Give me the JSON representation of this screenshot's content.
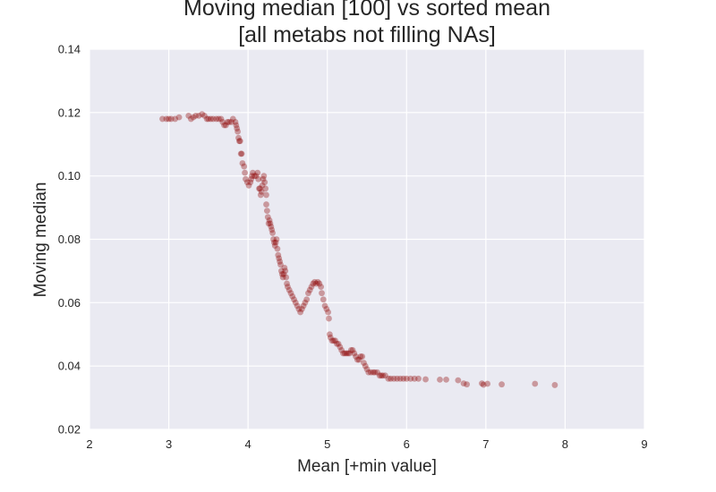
{
  "chart_data": {
    "type": "scatter",
    "title_lines": [
      "Moving median [100] vs sorted mean",
      "[all metabs not filling NAs]"
    ],
    "xlabel": "Mean [+min value]",
    "ylabel": "Moving median",
    "xlim": [
      2,
      9
    ],
    "ylim": [
      0.02,
      0.14
    ],
    "x_ticks": [
      2,
      3,
      4,
      5,
      6,
      7,
      8,
      9
    ],
    "y_ticks": [
      0.02,
      0.04,
      0.06,
      0.08,
      0.1,
      0.12,
      0.14
    ],
    "x_tick_labels": [
      "2",
      "3",
      "4",
      "5",
      "6",
      "7",
      "8",
      "9"
    ],
    "y_tick_labels": [
      "0.02",
      "0.04",
      "0.06",
      "0.08",
      "0.10",
      "0.12",
      "0.14"
    ],
    "grid": true,
    "background_color": "#eaeaf2",
    "grid_color": "#ffffff",
    "point_color": "#8b0000",
    "point_alpha": 0.35,
    "series": [
      {
        "points": [
          [
            2.92,
            0.118
          ],
          [
            2.97,
            0.118
          ],
          [
            3.0,
            0.118
          ],
          [
            3.03,
            0.118
          ],
          [
            3.08,
            0.118
          ],
          [
            3.13,
            0.1185
          ],
          [
            3.25,
            0.119
          ],
          [
            3.28,
            0.118
          ],
          [
            3.31,
            0.1185
          ],
          [
            3.34,
            0.119
          ],
          [
            3.38,
            0.119
          ],
          [
            3.42,
            0.1195
          ],
          [
            3.45,
            0.119
          ],
          [
            3.48,
            0.118
          ],
          [
            3.5,
            0.118
          ],
          [
            3.53,
            0.118
          ],
          [
            3.56,
            0.118
          ],
          [
            3.6,
            0.118
          ],
          [
            3.63,
            0.118
          ],
          [
            3.66,
            0.118
          ],
          [
            3.68,
            0.117
          ],
          [
            3.7,
            0.116
          ],
          [
            3.72,
            0.116
          ],
          [
            3.74,
            0.117
          ],
          [
            3.76,
            0.117
          ],
          [
            3.79,
            0.117
          ],
          [
            3.81,
            0.118
          ],
          [
            3.84,
            0.117
          ],
          [
            3.85,
            0.116
          ],
          [
            3.86,
            0.115
          ],
          [
            3.87,
            0.114
          ],
          [
            3.88,
            0.112
          ],
          [
            3.89,
            0.111
          ],
          [
            3.9,
            0.111
          ],
          [
            3.91,
            0.107
          ],
          [
            3.92,
            0.107
          ],
          [
            3.93,
            0.104
          ],
          [
            3.95,
            0.103
          ],
          [
            3.96,
            0.101
          ],
          [
            3.97,
            0.099
          ],
          [
            3.99,
            0.098
          ],
          [
            4.01,
            0.097
          ],
          [
            4.03,
            0.098
          ],
          [
            4.04,
            0.099
          ],
          [
            4.05,
            0.1
          ],
          [
            4.06,
            0.101
          ],
          [
            4.08,
            0.1
          ],
          [
            4.1,
            0.1
          ],
          [
            4.12,
            0.101
          ],
          [
            4.13,
            0.099
          ],
          [
            4.14,
            0.096
          ],
          [
            4.15,
            0.096
          ],
          [
            4.16,
            0.094
          ],
          [
            4.17,
            0.095
          ],
          [
            4.18,
            0.097
          ],
          [
            4.19,
            0.099
          ],
          [
            4.2,
            0.1
          ],
          [
            4.21,
            0.098
          ],
          [
            4.22,
            0.096
          ],
          [
            4.23,
            0.094
          ],
          [
            4.23,
            0.091
          ],
          [
            4.24,
            0.089
          ],
          [
            4.25,
            0.087
          ],
          [
            4.26,
            0.085
          ],
          [
            4.27,
            0.086
          ],
          [
            4.28,
            0.085
          ],
          [
            4.29,
            0.084
          ],
          [
            4.3,
            0.083
          ],
          [
            4.31,
            0.082
          ],
          [
            4.32,
            0.08
          ],
          [
            4.33,
            0.079
          ],
          [
            4.34,
            0.078
          ],
          [
            4.35,
            0.079
          ],
          [
            4.36,
            0.08
          ],
          [
            4.37,
            0.077
          ],
          [
            4.38,
            0.075
          ],
          [
            4.39,
            0.074
          ],
          [
            4.4,
            0.073
          ],
          [
            4.41,
            0.072
          ],
          [
            4.42,
            0.07
          ],
          [
            4.43,
            0.069
          ],
          [
            4.44,
            0.068
          ],
          [
            4.45,
            0.069
          ],
          [
            4.46,
            0.071
          ],
          [
            4.47,
            0.07
          ],
          [
            4.48,
            0.068
          ],
          [
            4.49,
            0.066
          ],
          [
            4.5,
            0.065
          ],
          [
            4.52,
            0.064
          ],
          [
            4.54,
            0.063
          ],
          [
            4.56,
            0.062
          ],
          [
            4.58,
            0.061
          ],
          [
            4.6,
            0.06
          ],
          [
            4.62,
            0.059
          ],
          [
            4.64,
            0.058
          ],
          [
            4.66,
            0.057
          ],
          [
            4.68,
            0.058
          ],
          [
            4.7,
            0.059
          ],
          [
            4.72,
            0.06
          ],
          [
            4.74,
            0.061
          ],
          [
            4.76,
            0.063
          ],
          [
            4.78,
            0.064
          ],
          [
            4.8,
            0.065
          ],
          [
            4.82,
            0.066
          ],
          [
            4.84,
            0.0665
          ],
          [
            4.86,
            0.066
          ],
          [
            4.88,
            0.0665
          ],
          [
            4.9,
            0.066
          ],
          [
            4.92,
            0.065
          ],
          [
            4.93,
            0.063
          ],
          [
            4.95,
            0.061
          ],
          [
            4.97,
            0.059
          ],
          [
            4.99,
            0.058
          ],
          [
            5.01,
            0.057
          ],
          [
            5.02,
            0.055
          ],
          [
            5.03,
            0.05
          ],
          [
            5.04,
            0.049
          ],
          [
            5.06,
            0.048
          ],
          [
            5.08,
            0.048
          ],
          [
            5.1,
            0.048
          ],
          [
            5.12,
            0.047
          ],
          [
            5.14,
            0.047
          ],
          [
            5.16,
            0.046
          ],
          [
            5.18,
            0.045
          ],
          [
            5.2,
            0.044
          ],
          [
            5.22,
            0.044
          ],
          [
            5.24,
            0.044
          ],
          [
            5.26,
            0.044
          ],
          [
            5.28,
            0.044
          ],
          [
            5.3,
            0.045
          ],
          [
            5.32,
            0.045
          ],
          [
            5.34,
            0.044
          ],
          [
            5.36,
            0.043
          ],
          [
            5.38,
            0.042
          ],
          [
            5.4,
            0.042
          ],
          [
            5.42,
            0.043
          ],
          [
            5.44,
            0.043
          ],
          [
            5.46,
            0.041
          ],
          [
            5.48,
            0.04
          ],
          [
            5.5,
            0.039
          ],
          [
            5.52,
            0.038
          ],
          [
            5.55,
            0.038
          ],
          [
            5.58,
            0.038
          ],
          [
            5.6,
            0.038
          ],
          [
            5.63,
            0.038
          ],
          [
            5.66,
            0.037
          ],
          [
            5.68,
            0.037
          ],
          [
            5.7,
            0.037
          ],
          [
            5.73,
            0.037
          ],
          [
            5.77,
            0.036
          ],
          [
            5.8,
            0.036
          ],
          [
            5.84,
            0.036
          ],
          [
            5.88,
            0.036
          ],
          [
            5.92,
            0.036
          ],
          [
            5.96,
            0.036
          ],
          [
            6.0,
            0.036
          ],
          [
            6.05,
            0.036
          ],
          [
            6.1,
            0.036
          ],
          [
            6.15,
            0.036
          ],
          [
            6.24,
            0.0358
          ],
          [
            6.42,
            0.0357
          ],
          [
            6.5,
            0.0357
          ],
          [
            6.65,
            0.0355
          ],
          [
            6.72,
            0.0345
          ],
          [
            6.76,
            0.0342
          ],
          [
            6.95,
            0.0345
          ],
          [
            6.97,
            0.0341
          ],
          [
            7.02,
            0.0344
          ],
          [
            7.2,
            0.0342
          ],
          [
            7.62,
            0.0344
          ],
          [
            7.87,
            0.034
          ]
        ]
      }
    ]
  }
}
